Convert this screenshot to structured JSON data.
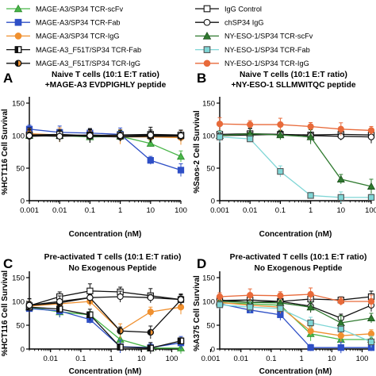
{
  "legend": [
    {
      "label": "MAGE-A3/SP34 TCR-scFv",
      "color": "#49b649",
      "marker": "triangle",
      "fill": "solid"
    },
    {
      "label": "MAGE-A3/SP34 TCR-Fab",
      "color": "#2e4fc6",
      "marker": "square",
      "fill": "solid"
    },
    {
      "label": "MAGE-A3/SP34 TCR-IgG",
      "color": "#f0902f",
      "marker": "circle",
      "fill": "solid"
    },
    {
      "label": "MAGE-A3_F51T/SP34 TCR-Fab",
      "color": "#111111",
      "marker": "square",
      "fill": "half"
    },
    {
      "label": "MAGE-A3_F51T/SP34 TCR-IgG",
      "color": "#111111",
      "marker": "circle",
      "fill": "half"
    },
    {
      "label": "IgG Control",
      "color": "#111111",
      "marker": "square",
      "fill": "open"
    },
    {
      "label": "chSP34 IgG",
      "color": "#111111",
      "marker": "circle",
      "fill": "open"
    },
    {
      "label": "NY-ESO-1/SP34 TCR-scFv",
      "color": "#2f7a2f",
      "marker": "triangle",
      "fill": "solid"
    },
    {
      "label": "NY-ESO-1/SP34 TCR-Fab",
      "color": "#7fd6d6",
      "marker": "square",
      "fill": "solid"
    },
    {
      "label": "NY-ESO-1/SP34 TCR-IgG",
      "color": "#e86a3a",
      "marker": "circle",
      "fill": "solid"
    }
  ],
  "chart_data": [
    {
      "type": "line",
      "panel": "A",
      "title": "Naive T cells (10:1 E:T ratio)",
      "subtitle": "+MAGE-A3 EVDPIGHLY peptide",
      "xlabel": "Concentration (nM)",
      "ylabel": "%HCT116 Cell Survival",
      "xscale": "log",
      "xlim": [
        0.001,
        100
      ],
      "ylim": [
        0,
        150
      ],
      "xticks": [
        "0.001",
        "0.01",
        "0.1",
        "1",
        "10",
        "100"
      ],
      "yticks": [
        "0",
        "50",
        "100",
        "150"
      ],
      "x": [
        0.001,
        0.01,
        0.1,
        1,
        10,
        100
      ],
      "series": [
        {
          "name": "MAGE-A3/SP34 TCR-scFv",
          "values": [
            100,
            100,
            98,
            99,
            88,
            68
          ]
        },
        {
          "name": "MAGE-A3/SP34 TCR-Fab",
          "values": [
            110,
            105,
            104,
            102,
            62,
            47
          ]
        },
        {
          "name": "MAGE-A3/SP34 TCR-IgG",
          "values": [
            103,
            101,
            100,
            98,
            98,
            97
          ]
        },
        {
          "name": "MAGE-A3_F51T/SP34 TCR-Fab",
          "values": [
            101,
            100,
            101,
            100,
            100,
            100
          ]
        },
        {
          "name": "MAGE-A3_F51T/SP34 TCR-IgG",
          "values": [
            99,
            100,
            99,
            98,
            99,
            99
          ]
        },
        {
          "name": "IgG Control",
          "values": [
            101,
            102,
            100,
            101,
            102,
            101
          ]
        },
        {
          "name": "chSP34 IgG",
          "values": [
            100,
            99,
            100,
            100,
            101,
            100
          ]
        }
      ]
    },
    {
      "type": "line",
      "panel": "B",
      "title": "Naive T cells (10:1 E:T ratio)",
      "subtitle": "+NY-ESO-1 SLLMWITQC peptide",
      "xlabel": "Concentration (nM)",
      "ylabel": "%Saos-2 Cell Survival",
      "xscale": "log",
      "xlim": [
        0.001,
        100
      ],
      "ylim": [
        0,
        150
      ],
      "xticks": [
        "0.001",
        "0.01",
        "0.1",
        "1",
        "10",
        "100"
      ],
      "yticks": [
        "0",
        "50",
        "100",
        "150"
      ],
      "x": [
        0.001,
        0.01,
        0.1,
        1,
        10,
        100
      ],
      "series": [
        {
          "name": "IgG Control",
          "values": [
            102,
            103,
            102,
            101,
            102,
            101
          ]
        },
        {
          "name": "chSP34 IgG",
          "values": [
            100,
            101,
            102,
            100,
            99,
            98
          ]
        },
        {
          "name": "NY-ESO-1/SP34 TCR-scFv",
          "values": [
            100,
            103,
            101,
            98,
            33,
            22
          ]
        },
        {
          "name": "NY-ESO-1/SP34 TCR-Fab",
          "values": [
            98,
            95,
            45,
            8,
            5,
            5
          ]
        },
        {
          "name": "NY-ESO-1/SP34 TCR-IgG",
          "values": [
            118,
            117,
            117,
            114,
            110,
            108
          ]
        }
      ]
    },
    {
      "type": "line",
      "panel": "C",
      "title": "Pre-activated T cells (10:1 E:T ratio)",
      "subtitle": "No Exogenous Peptide",
      "xlabel": "Concentration (nM)",
      "ylabel": "%HCT116 Cell Survival",
      "xscale": "log",
      "xlim": [
        0.002,
        200
      ],
      "ylim": [
        0,
        150
      ],
      "xticks": [
        "0.01",
        "0.1",
        "1",
        "10",
        "100"
      ],
      "yticks": [
        "0",
        "50",
        "100",
        "150"
      ],
      "x": [
        0.002,
        0.02,
        0.2,
        2,
        20,
        200
      ],
      "series": [
        {
          "name": "MAGE-A3/SP34 TCR-scFv",
          "values": [
            88,
            78,
            72,
            20,
            2,
            2
          ]
        },
        {
          "name": "MAGE-A3/SP34 TCR-Fab",
          "values": [
            85,
            80,
            62,
            5,
            3,
            13
          ]
        },
        {
          "name": "MAGE-A3/SP34 TCR-IgG",
          "values": [
            90,
            95,
            100,
            38,
            78,
            88
          ]
        },
        {
          "name": "MAGE-A3_F51T/SP34 TCR-Fab",
          "values": [
            88,
            84,
            72,
            4,
            2,
            17
          ]
        },
        {
          "name": "MAGE-A3_F51T/SP34 TCR-IgG",
          "values": [
            92,
            97,
            108,
            38,
            35,
            103
          ]
        },
        {
          "name": "IgG Control",
          "values": [
            91,
            110,
            122,
            120,
            112,
            104
          ]
        },
        {
          "name": "chSP34 IgG",
          "values": [
            92,
            100,
            108,
            110,
            108,
            104
          ]
        }
      ]
    },
    {
      "type": "line",
      "panel": "D",
      "title": "Pre-activated T cells (10:1 E:T ratio)",
      "subtitle": "No Exogenous Peptide",
      "xlabel": "Concentration (nM)",
      "ylabel": "%A375 Cell Survival",
      "xscale": "log",
      "xlim": [
        0.002,
        200
      ],
      "ylim": [
        0,
        150
      ],
      "xticks": [
        "0.001",
        "0.01",
        "0.1",
        "1",
        "10",
        "100"
      ],
      "yticks": [
        "0",
        "50",
        "100",
        "150"
      ],
      "x": [
        0.002,
        0.02,
        0.2,
        2,
        20,
        200
      ],
      "series": [
        {
          "name": "IgG Control",
          "values": [
            102,
            103,
            100,
            105,
            103,
            110
          ]
        },
        {
          "name": "chSP34 IgG",
          "values": [
            103,
            98,
            100,
            90,
            65,
            92
          ]
        },
        {
          "name": "MAGE-A3/SP34 TCR-scFv",
          "values": [
            97,
            95,
            92,
            32,
            20,
            20
          ]
        },
        {
          "name": "MAGE-A3/SP34 TCR-Fab",
          "values": [
            95,
            82,
            72,
            3,
            3,
            3
          ]
        },
        {
          "name": "MAGE-A3/SP34 TCR-IgG",
          "values": [
            98,
            92,
            88,
            38,
            28,
            32
          ]
        },
        {
          "name": "NY-ESO-1/SP34 TCR-scFv",
          "values": [
            100,
            98,
            97,
            88,
            55,
            65
          ]
        },
        {
          "name": "NY-ESO-1/SP34 TCR-Fab",
          "values": [
            93,
            88,
            85,
            55,
            42,
            15
          ]
        },
        {
          "name": "NY-ESO-1/SP34 TCR-IgG",
          "values": [
            110,
            113,
            112,
            115,
            100,
            100
          ]
        }
      ]
    }
  ]
}
